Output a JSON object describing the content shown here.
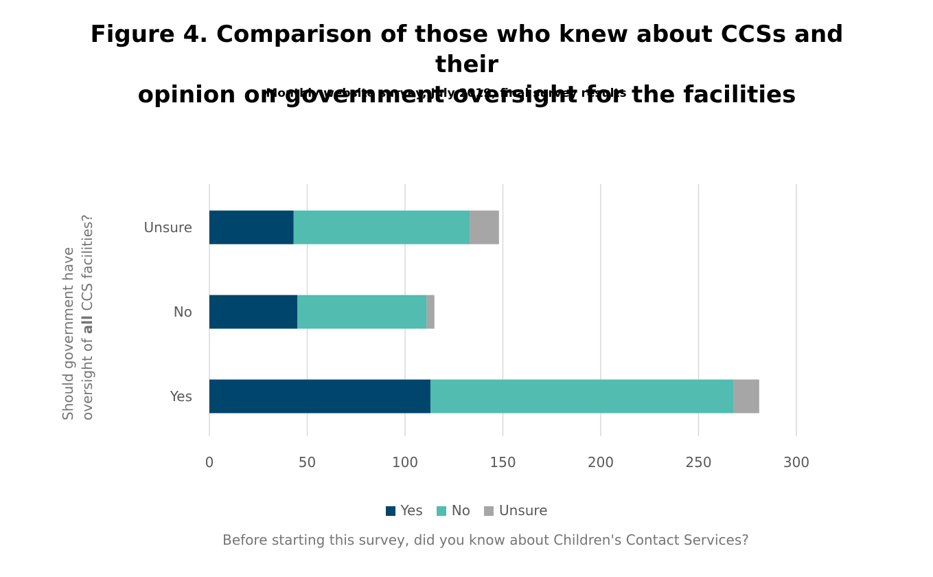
{
  "title_lines": [
    "Figure 4. Comparison of those who knew about CCSs and their",
    "opinion on government oversight for the facilities"
  ],
  "subtitle": "Monthly website survey, July 2019, final survey results",
  "chart_data": {
    "type": "bar",
    "orientation": "horizontal",
    "stacked": true,
    "title": "Figure 4. Comparison of those who knew about CCSs and their opinion on government oversight for the facilities",
    "subtitle": "Monthly website survey, July 2019, final survey results",
    "categories": [
      "Yes",
      "No",
      "Unsure"
    ],
    "series": [
      {
        "name": "Yes",
        "color": "#00456b",
        "values": [
          113,
          45,
          43
        ]
      },
      {
        "name": "No",
        "color": "#52bcb1",
        "values": [
          155,
          66,
          90
        ]
      },
      {
        "name": "Unsure",
        "color": "#a6a6a6",
        "values": [
          13,
          4,
          15
        ]
      }
    ],
    "xlabel": "Before starting this survey, did you know about Children's Contact Services?",
    "ylabel_lines": [
      "Should government have",
      "oversight of all CCS facilities?"
    ],
    "ylabel_bold_word": "all",
    "xlim": [
      0,
      300
    ],
    "xticks": [
      0,
      50,
      100,
      150,
      200,
      250,
      300
    ],
    "grid": true,
    "legend": "bottom"
  }
}
